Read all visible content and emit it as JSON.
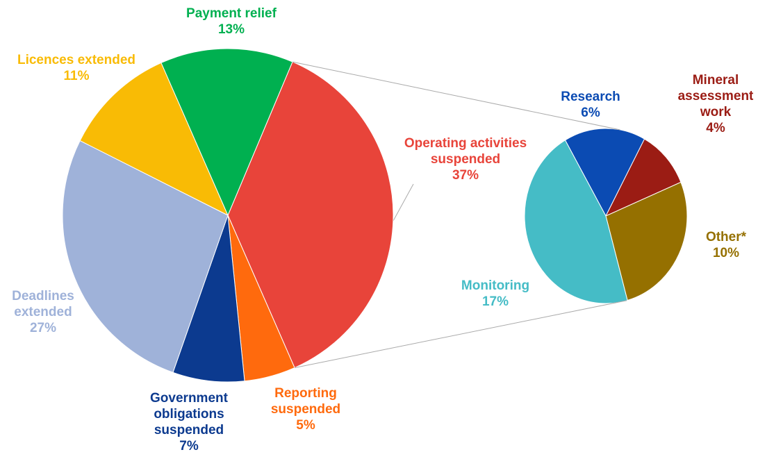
{
  "chart_data": [
    {
      "type": "pie",
      "categories": [
        "Operating activities suspended",
        "Reporting suspended",
        "Government obligations suspended",
        "Deadlines extended",
        "Licences extended",
        "Payment relief"
      ],
      "values": [
        37,
        5,
        7,
        27,
        11,
        13
      ],
      "value_labels": [
        "37%",
        "5%",
        "7%",
        "27%",
        "11%",
        "13%"
      ],
      "colors": [
        "#e8443a",
        "#ff6a0d",
        "#0c3a8f",
        "#9fb2d9",
        "#f9bb05",
        "#00b050"
      ]
    },
    {
      "type": "pie",
      "categories": [
        "Research",
        "Mineral assessment work",
        "Other*",
        "Monitoring"
      ],
      "values": [
        6,
        4,
        10,
        17
      ],
      "value_labels": [
        "6%",
        "4%",
        "10%",
        "17%"
      ],
      "colors": [
        "#0b4bb3",
        "#9b1c14",
        "#957000",
        "#45bcc6"
      ]
    }
  ]
}
